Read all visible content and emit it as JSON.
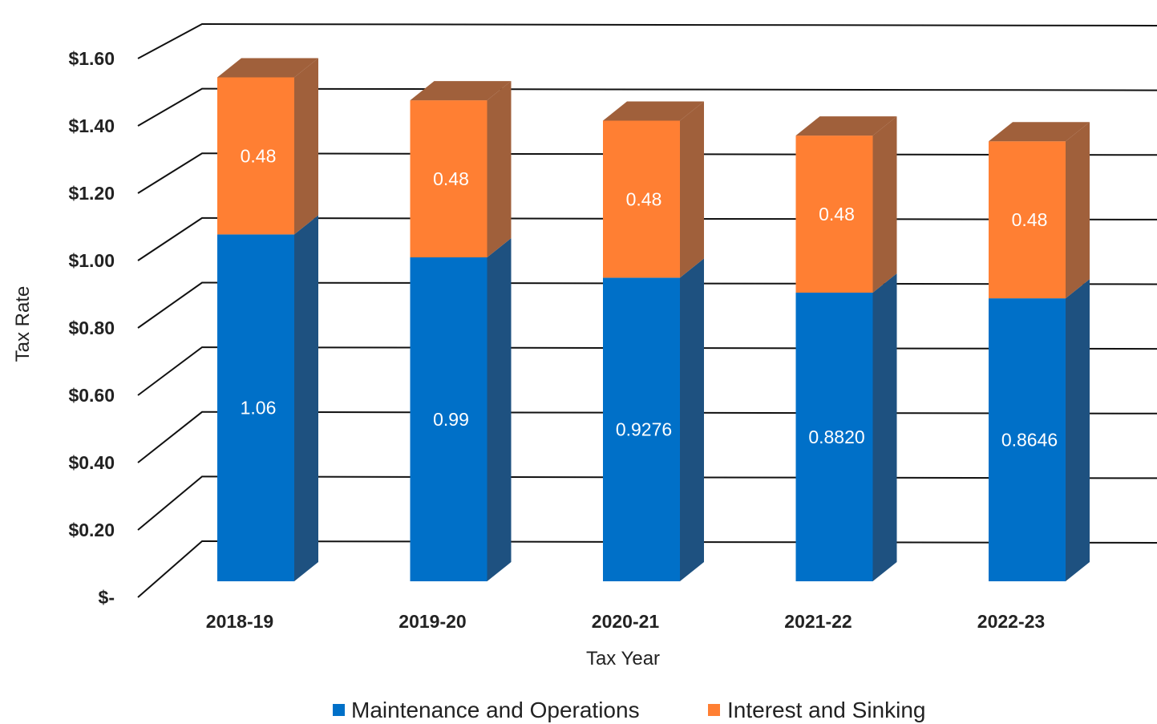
{
  "chart_data": {
    "type": "bar",
    "stacked": true,
    "three_d": true,
    "categories": [
      "2018-19",
      "2019-20",
      "2020-21",
      "2021-22",
      "2022-23"
    ],
    "series": [
      {
        "name": "Maintenance and Operations",
        "values": [
          1.06,
          0.99,
          0.9276,
          0.882,
          0.8646
        ],
        "labels": [
          "1.06",
          "0.99",
          "0.9276",
          "0.8820",
          "0.8646"
        ],
        "color": "#0070C8",
        "side_color": "#1E5180"
      },
      {
        "name": "Interest and Sinking",
        "values": [
          0.48,
          0.48,
          0.48,
          0.48,
          0.48
        ],
        "labels": [
          "0.48",
          "0.48",
          "0.48",
          "0.48",
          "0.48"
        ],
        "color": "#FF7F33",
        "side_color": "#A0603B"
      }
    ],
    "yticks": [
      0,
      0.2,
      0.4,
      0.6,
      0.8,
      1.0,
      1.2,
      1.4,
      1.6
    ],
    "ytick_labels": [
      "$-",
      "$0.20",
      "$0.40",
      "$0.60",
      "$0.80",
      "$1.00",
      "$1.20",
      "$1.40",
      "$1.60"
    ],
    "ylim": [
      0,
      1.6
    ],
    "xlabel": "Tax Year",
    "ylabel": "Tax Rate",
    "grid": true,
    "legend_position": "bottom"
  }
}
